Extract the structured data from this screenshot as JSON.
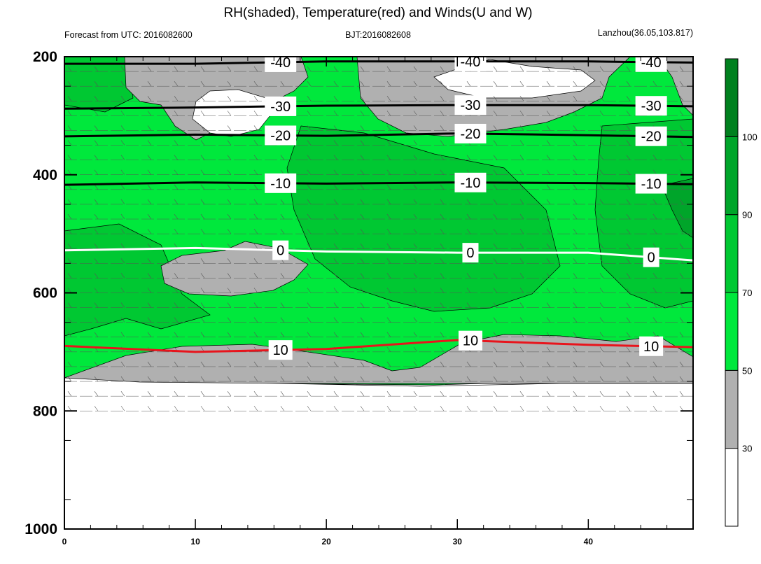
{
  "title": "RH(shaded), Temperature(red) and Winds(U and W)",
  "subtitle_left": "Forecast from UTC: 2016082600",
  "subtitle_center": "BJT:2016082608",
  "subtitle_right": "Lanzhou(36.05,103.817)",
  "chart_data": {
    "type": "contour",
    "x_range": [
      0,
      48
    ],
    "x_ticks": [
      0,
      10,
      20,
      30,
      40
    ],
    "y_range": [
      200,
      1000
    ],
    "y_ticks": [
      200,
      400,
      600,
      800,
      1000
    ],
    "y_reversed": true,
    "colorbar": {
      "levels": [
        30,
        50,
        70,
        90,
        100
      ],
      "level_labels": [
        "30",
        "50",
        "70",
        "90",
        "100"
      ],
      "colors": [
        "#ffffff",
        "#b0b0b0",
        "#00e83c",
        "#00c832",
        "#00a52a",
        "#00801e"
      ]
    },
    "temperature_contours": [
      {
        "label": "-40",
        "color": "#000000",
        "points": [
          [
            0,
            212
          ],
          [
            10,
            212
          ],
          [
            20,
            208
          ],
          [
            30,
            208
          ],
          [
            40,
            208
          ],
          [
            48,
            210
          ]
        ]
      },
      {
        "label": "-30",
        "color": "#000000",
        "points": [
          [
            0,
            288
          ],
          [
            10,
            286
          ],
          [
            20,
            283
          ],
          [
            30,
            282
          ],
          [
            40,
            282
          ],
          [
            48,
            284
          ]
        ]
      },
      {
        "label": "-20",
        "color": "#000000",
        "points": [
          [
            0,
            335
          ],
          [
            10,
            332
          ],
          [
            20,
            334
          ],
          [
            30,
            330
          ],
          [
            40,
            333
          ],
          [
            48,
            336
          ]
        ]
      },
      {
        "label": "-10",
        "color": "#000000",
        "points": [
          [
            0,
            417
          ],
          [
            10,
            413
          ],
          [
            20,
            415
          ],
          [
            30,
            413
          ],
          [
            40,
            414
          ],
          [
            48,
            416
          ]
        ]
      },
      {
        "label": "0",
        "color": "#ffffff",
        "points": [
          [
            0,
            528
          ],
          [
            10,
            524
          ],
          [
            20,
            530
          ],
          [
            30,
            532
          ],
          [
            40,
            532
          ],
          [
            48,
            545
          ]
        ]
      },
      {
        "label": "10",
        "color": "#e8141c",
        "points": [
          [
            0,
            690
          ],
          [
            10,
            700
          ],
          [
            20,
            695
          ],
          [
            30,
            680
          ],
          [
            40,
            688
          ],
          [
            48,
            692
          ]
        ]
      }
    ]
  }
}
